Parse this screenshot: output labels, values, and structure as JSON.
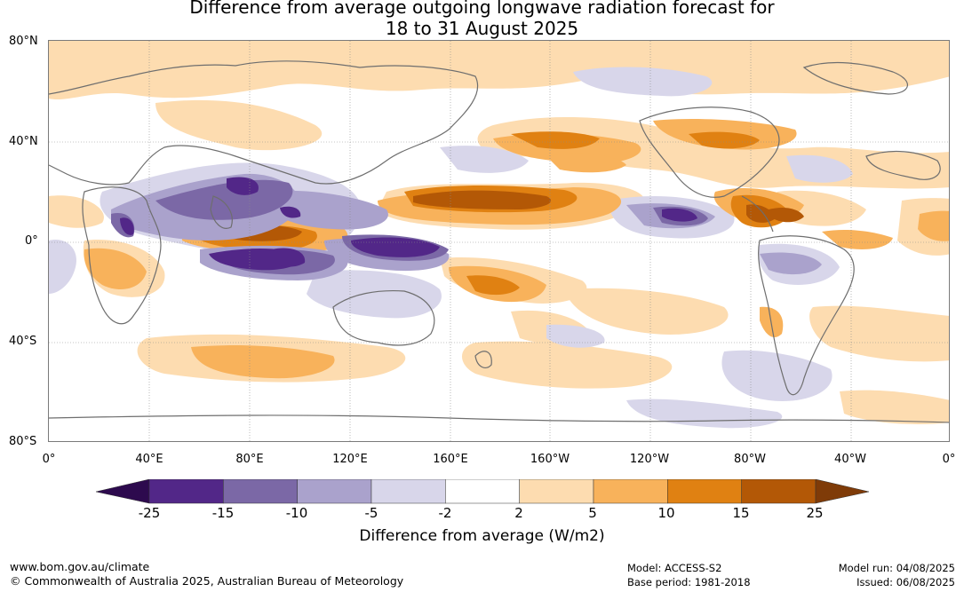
{
  "title": {
    "line1": "Difference from average outgoing longwave radiation forecast for",
    "line2": "18 to 31 August 2025"
  },
  "map": {
    "lat_labels": [
      "80°N",
      "40°N",
      "0°",
      "40°S",
      "80°S"
    ],
    "lon_labels": [
      "0°",
      "40°E",
      "80°E",
      "120°E",
      "160°E",
      "160°W",
      "120°W",
      "80°W",
      "40°W",
      "0°"
    ]
  },
  "colorbar": {
    "title": "Difference from average (W/m2)",
    "ticks": [
      "-25",
      "-15",
      "-10",
      "-5",
      "-2",
      "2",
      "5",
      "10",
      "15",
      "25"
    ],
    "colors": {
      "below_min": "#2d0a4e",
      "bins": [
        "#522788",
        "#7b68a6",
        "#aaa2cc",
        "#d8d6ea",
        "#ffffff",
        "#fddcb0",
        "#f8b25b",
        "#e08112",
        "#b35806"
      ],
      "above_max": "#7f3b08"
    }
  },
  "footer": {
    "url": "www.bom.gov.au/climate",
    "copyright": "© Commonwealth of Australia 2025, Australian Bureau of Meteorology",
    "model": "Model: ACCESS-S2",
    "base_period": "Base period: 1981-2018",
    "model_run": "Model run: 04/08/2025",
    "issued": "Issued: 06/08/2025"
  }
}
